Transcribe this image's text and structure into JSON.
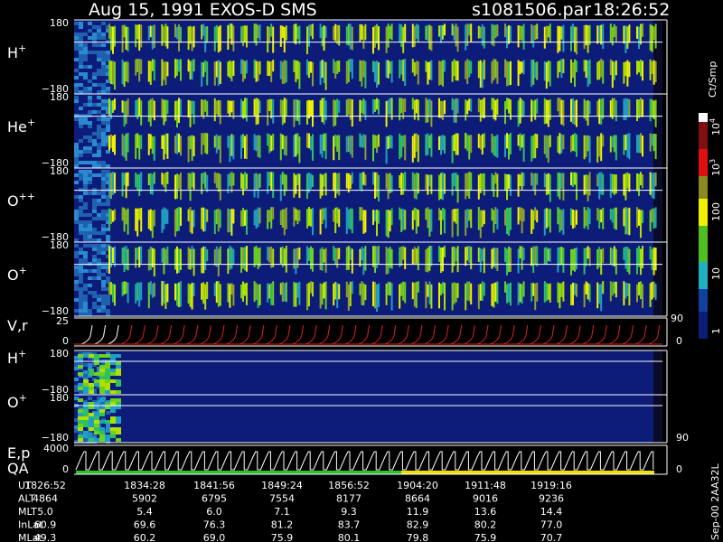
{
  "header": {
    "title": "Aug 15, 1991   EXOS-D SMS",
    "file": "s1081506.par",
    "time": "18:26:52"
  },
  "panels": [
    {
      "label": "H",
      "sup": "+",
      "top": "180",
      "bottom": "−180"
    },
    {
      "label": "He",
      "sup": "+",
      "top": "180",
      "bottom": "−180"
    },
    {
      "label": "O",
      "sup": "++",
      "top": "180",
      "bottom": "−180"
    },
    {
      "label": "O",
      "sup": "+",
      "top": "180",
      "bottom": "−180"
    },
    {
      "label": "V,r",
      "top": "25",
      "bottom": "0",
      "right_top": "90",
      "right_bottom": "0"
    },
    {
      "label": "H",
      "sup": "+",
      "top": "180",
      "bottom": "−180"
    },
    {
      "label": "O",
      "sup": "+",
      "top": "180",
      "bottom": "−180",
      "right_bottom": "90"
    },
    {
      "label": "E,p",
      "label2": "QA",
      "top": "4000",
      "bottom": "0",
      "right_bottom": "0"
    }
  ],
  "colorbar": {
    "title": "Ct/Smp",
    "ticks": [
      {
        "base": "10",
        "sup": "4"
      },
      {
        "base": "10",
        "sup": "3"
      },
      {
        "base": "100"
      },
      {
        "base": "10"
      },
      {
        "base": "1"
      }
    ]
  },
  "side_note": "Sep-00  2AA32L",
  "table": {
    "rows": [
      [
        "UT",
        "1826:52",
        "1834:28",
        "1841:56",
        "1849:24",
        "1856:52",
        "1904:20",
        "1911:48",
        "1919:16"
      ],
      [
        "ALT",
        "4864",
        "5902",
        "6795",
        "7554",
        "8177",
        "8664",
        "9016",
        "9236"
      ],
      [
        "MLT",
        "5.0",
        "5.4",
        "6.0",
        "7.1",
        "9.3",
        "11.9",
        "13.6",
        "14.4"
      ],
      [
        "InLat",
        "60.9",
        "69.6",
        "76.3",
        "81.2",
        "83.7",
        "82.9",
        "80.2",
        "77.0"
      ],
      [
        "MLat",
        "49.3",
        "60.2",
        "69.0",
        "75.9",
        "80.1",
        "79.8",
        "75.9",
        "70.7"
      ]
    ]
  }
}
